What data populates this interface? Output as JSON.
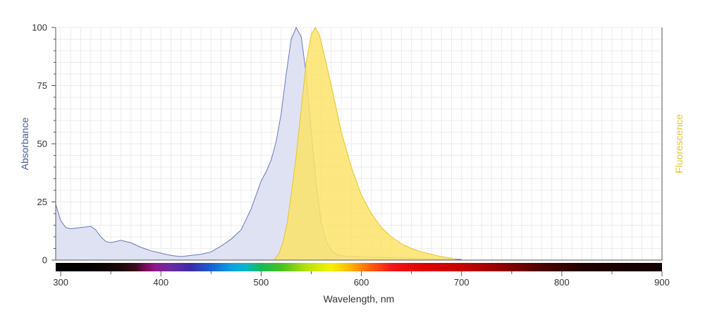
{
  "chart_data": {
    "type": "area",
    "xlabel": "Wavelength, nm",
    "ylabel": "Absorbance",
    "y2label": "Fluorescence",
    "xlim": [
      295,
      900
    ],
    "ylim": [
      0,
      100
    ],
    "x_ticks": [
      300,
      400,
      500,
      600,
      700,
      800,
      900
    ],
    "y_ticks": [
      0,
      25,
      50,
      75,
      100
    ],
    "grid": true,
    "series": [
      {
        "key": "absorbance",
        "color": "#6a78b8",
        "fill": "#dfe2f2",
        "points": [
          [
            295,
            24
          ],
          [
            300,
            17
          ],
          [
            305,
            14
          ],
          [
            310,
            13.5
          ],
          [
            320,
            14
          ],
          [
            330,
            14.5
          ],
          [
            335,
            13
          ],
          [
            340,
            10
          ],
          [
            345,
            8
          ],
          [
            350,
            7.5
          ],
          [
            355,
            8
          ],
          [
            360,
            8.5
          ],
          [
            365,
            8
          ],
          [
            370,
            7.5
          ],
          [
            380,
            5.5
          ],
          [
            390,
            4
          ],
          [
            400,
            3
          ],
          [
            410,
            2
          ],
          [
            420,
            1.5
          ],
          [
            430,
            2
          ],
          [
            440,
            2.5
          ],
          [
            450,
            3.5
          ],
          [
            460,
            6
          ],
          [
            470,
            9
          ],
          [
            480,
            13
          ],
          [
            490,
            22
          ],
          [
            500,
            34
          ],
          [
            505,
            38
          ],
          [
            510,
            43
          ],
          [
            515,
            51
          ],
          [
            520,
            63
          ],
          [
            525,
            80
          ],
          [
            530,
            95
          ],
          [
            535,
            100
          ],
          [
            540,
            96
          ],
          [
            545,
            80
          ],
          [
            550,
            55
          ],
          [
            555,
            32
          ],
          [
            560,
            16
          ],
          [
            565,
            8
          ],
          [
            570,
            4
          ],
          [
            575,
            2.5
          ],
          [
            580,
            1.8
          ],
          [
            600,
            1.3
          ],
          [
            650,
            0.8
          ],
          [
            700,
            0.3
          ]
        ]
      },
      {
        "key": "fluorescence",
        "color": "#e6c52a",
        "fill": "#fbe36a",
        "points": [
          [
            513,
            0
          ],
          [
            518,
            3
          ],
          [
            522,
            8
          ],
          [
            526,
            16
          ],
          [
            530,
            28
          ],
          [
            535,
            45
          ],
          [
            540,
            65
          ],
          [
            545,
            85
          ],
          [
            550,
            97
          ],
          [
            554,
            100
          ],
          [
            558,
            97
          ],
          [
            562,
            90
          ],
          [
            570,
            75
          ],
          [
            580,
            55
          ],
          [
            590,
            40
          ],
          [
            600,
            28
          ],
          [
            610,
            20
          ],
          [
            620,
            14
          ],
          [
            630,
            10
          ],
          [
            640,
            7
          ],
          [
            650,
            5
          ],
          [
            660,
            3.5
          ],
          [
            670,
            2.5
          ],
          [
            680,
            1.5
          ],
          [
            690,
            0.8
          ],
          [
            695,
            0
          ]
        ]
      }
    ],
    "spectrum_bar": [
      {
        "nm": 295,
        "color": "#000000"
      },
      {
        "nm": 330,
        "color": "#050000"
      },
      {
        "nm": 360,
        "color": "#1a0808"
      },
      {
        "nm": 375,
        "color": "#3a0a1a"
      },
      {
        "nm": 385,
        "color": "#7a0a5a"
      },
      {
        "nm": 395,
        "color": "#8e1a8e"
      },
      {
        "nm": 410,
        "color": "#6a2aa0"
      },
      {
        "nm": 430,
        "color": "#3c2aa6"
      },
      {
        "nm": 450,
        "color": "#1a5fd0"
      },
      {
        "nm": 470,
        "color": "#0aa0e0"
      },
      {
        "nm": 485,
        "color": "#0ab7c8"
      },
      {
        "nm": 500,
        "color": "#18b858"
      },
      {
        "nm": 520,
        "color": "#48c020"
      },
      {
        "nm": 545,
        "color": "#b6e010"
      },
      {
        "nm": 570,
        "color": "#f6f200"
      },
      {
        "nm": 590,
        "color": "#ffb000"
      },
      {
        "nm": 610,
        "color": "#ff5a10"
      },
      {
        "nm": 630,
        "color": "#f01818"
      },
      {
        "nm": 660,
        "color": "#e00000"
      },
      {
        "nm": 700,
        "color": "#c80000"
      },
      {
        "nm": 740,
        "color": "#900000"
      },
      {
        "nm": 780,
        "color": "#4a0000"
      },
      {
        "nm": 820,
        "color": "#220000"
      },
      {
        "nm": 900,
        "color": "#120000"
      }
    ]
  }
}
